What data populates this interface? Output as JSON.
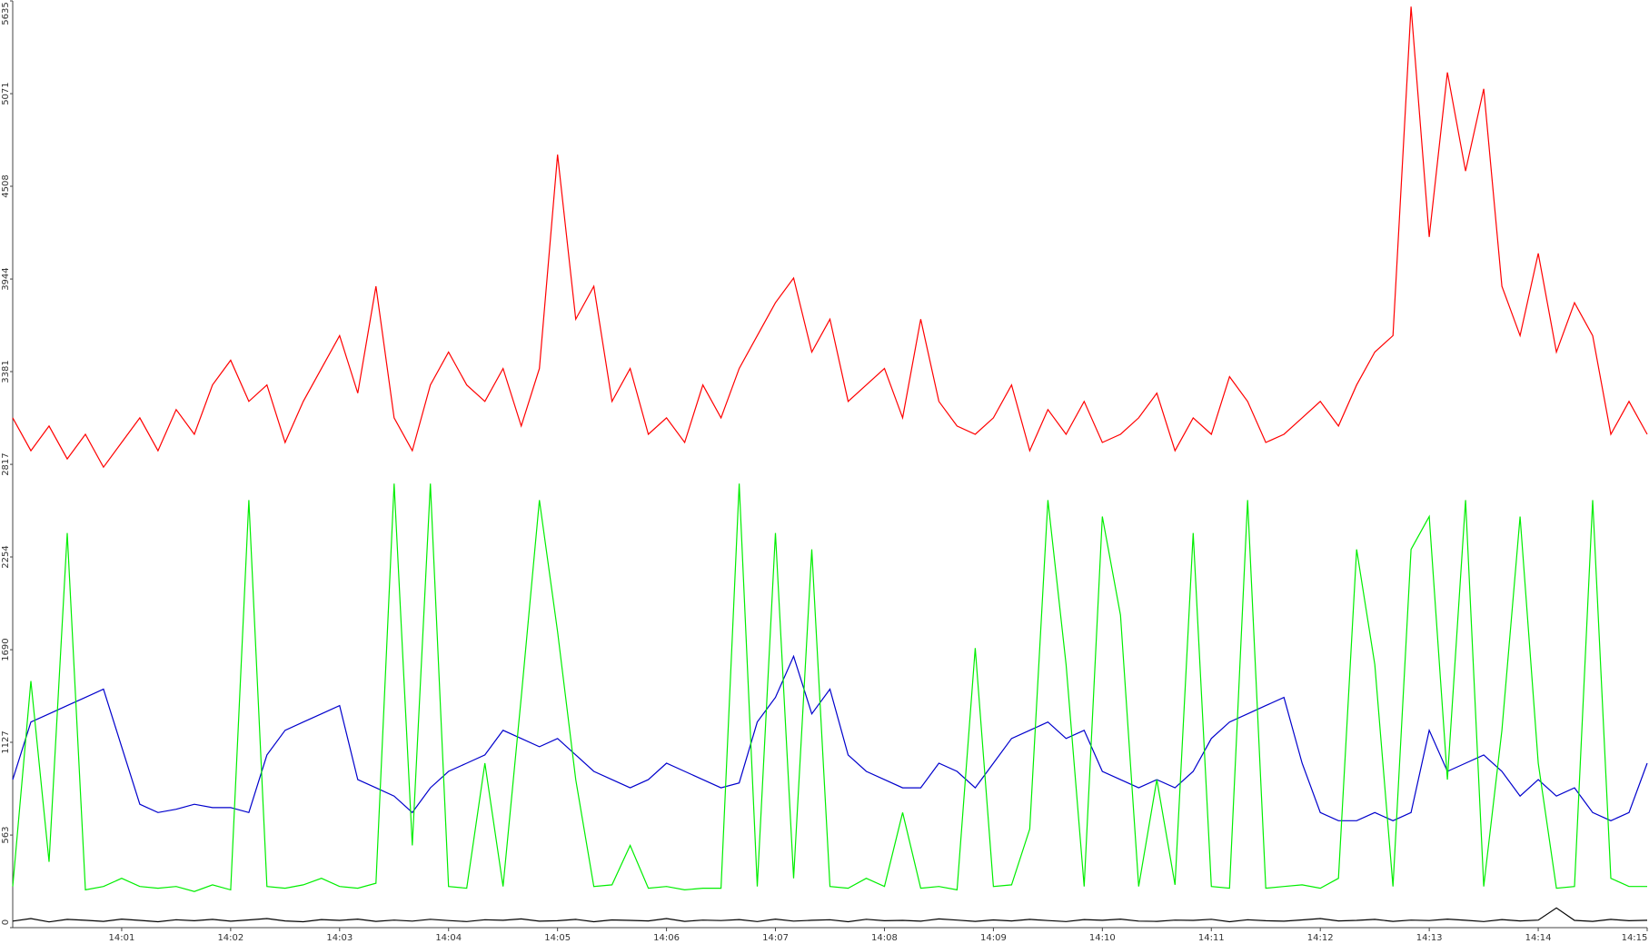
{
  "chart_data": {
    "type": "line",
    "categories": [
      null,
      null,
      null,
      null,
      null,
      null,
      "14:01",
      null,
      null,
      null,
      null,
      null,
      "14:02",
      null,
      null,
      null,
      null,
      null,
      "14:03",
      null,
      null,
      null,
      null,
      null,
      "14:04",
      null,
      null,
      null,
      null,
      null,
      "14:05",
      null,
      null,
      null,
      null,
      null,
      "14:06",
      null,
      null,
      null,
      null,
      null,
      "14:07",
      null,
      null,
      null,
      null,
      null,
      "14:08",
      null,
      null,
      null,
      null,
      null,
      "14:09",
      null,
      null,
      null,
      null,
      null,
      "14:10",
      null,
      null,
      null,
      null,
      null,
      "14:11",
      null,
      null,
      null,
      null,
      null,
      "14:12",
      null,
      null,
      null,
      null,
      null,
      "14:13",
      null,
      null,
      null,
      null,
      null,
      "14:14",
      null,
      null,
      null,
      null,
      null,
      "14:15"
    ],
    "ylim": [
      0,
      5635
    ],
    "yticks": [
      0,
      563,
      1127,
      1690,
      2254,
      2817,
      3381,
      3944,
      4508,
      5071,
      5635
    ],
    "series": [
      {
        "color": "#ff0000",
        "values": [
          3100,
          2900,
          3050,
          2850,
          3000,
          2800,
          2950,
          3100,
          2900,
          3150,
          3000,
          3300,
          3450,
          3200,
          3300,
          2950,
          3200,
          3400,
          3600,
          3250,
          3900,
          3100,
          2900,
          3300,
          3500,
          3300,
          3200,
          3400,
          3050,
          3400,
          4700,
          3700,
          3900,
          3200,
          3400,
          3000,
          3100,
          2950,
          3300,
          3100,
          3400,
          3600,
          3800,
          3950,
          3500,
          3700,
          3200,
          3300,
          3400,
          3100,
          3700,
          3200,
          3050,
          3000,
          3100,
          3300,
          2900,
          3150,
          3000,
          3200,
          2950,
          3000,
          3100,
          3250,
          2900,
          3100,
          3000,
          3350,
          3200,
          2950,
          3000,
          3100,
          3200,
          3050,
          3300,
          3500,
          3600,
          5600,
          4200,
          5200,
          4600,
          5100,
          3900,
          3600,
          4100,
          3500,
          3800,
          3600,
          3000,
          3200,
          3000
        ]
      },
      {
        "color": "#0000cc",
        "values": [
          900,
          1250,
          1300,
          1350,
          1400,
          1450,
          1100,
          750,
          700,
          720,
          750,
          730,
          730,
          700,
          1050,
          1200,
          1250,
          1300,
          1350,
          900,
          850,
          800,
          700,
          850,
          950,
          1000,
          1050,
          1200,
          1150,
          1100,
          1150,
          1050,
          950,
          900,
          850,
          900,
          1000,
          950,
          900,
          850,
          880,
          1250,
          1400,
          1650,
          1300,
          1450,
          1050,
          950,
          900,
          850,
          850,
          1000,
          950,
          850,
          1000,
          1150,
          1200,
          1250,
          1150,
          1200,
          950,
          900,
          850,
          900,
          850,
          950,
          1150,
          1250,
          1300,
          1350,
          1400,
          1000,
          700,
          650,
          650,
          700,
          650,
          700,
          1200,
          950,
          1000,
          1050,
          950,
          800,
          900,
          800,
          850,
          700,
          650,
          700,
          1000
        ]
      },
      {
        "color": "#00ee00",
        "values": [
          250,
          1500,
          400,
          2400,
          230,
          250,
          300,
          250,
          240,
          250,
          220,
          260,
          230,
          2600,
          250,
          240,
          260,
          300,
          250,
          240,
          270,
          2700,
          500,
          2700,
          250,
          240,
          1000,
          250,
          1400,
          2600,
          1800,
          900,
          250,
          260,
          500,
          240,
          250,
          230,
          240,
          240,
          2700,
          250,
          2400,
          300,
          2300,
          250,
          240,
          300,
          250,
          700,
          240,
          250,
          230,
          1700,
          250,
          260,
          600,
          2600,
          1600,
          250,
          2500,
          1900,
          250,
          900,
          260,
          2400,
          250,
          240,
          2600,
          240,
          250,
          260,
          240,
          300,
          2300,
          1600,
          250,
          2300,
          2500,
          900,
          2600,
          250,
          1200,
          2500,
          1000,
          240,
          250,
          2600,
          300,
          250,
          250
        ]
      },
      {
        "color": "#000000",
        "values": [
          40,
          55,
          35,
          50,
          45,
          38,
          52,
          44,
          36,
          48,
          42,
          50,
          39,
          47,
          55,
          41,
          36,
          49,
          44,
          52,
          38,
          46,
          40,
          51,
          43,
          37,
          48,
          45,
          53,
          39,
          42,
          50,
          36,
          47,
          44,
          41,
          55,
          38,
          46,
          43,
          49,
          37,
          52,
          40,
          45,
          48,
          36,
          51,
          42,
          44,
          39,
          53,
          46,
          38,
          47,
          41,
          50,
          43,
          37,
          49,
          45,
          52,
          40,
          38,
          46,
          44,
          51,
          36,
          48,
          42,
          39,
          47,
          55,
          41,
          44,
          50,
          38,
          46,
          43,
          52,
          45,
          37,
          49,
          41,
          46,
          120,
          44,
          38,
          50,
          42,
          45
        ]
      }
    ]
  }
}
